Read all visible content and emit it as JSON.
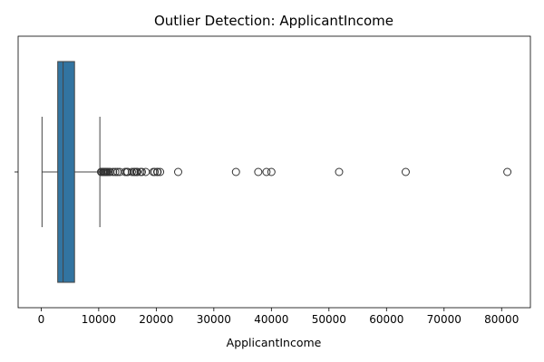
{
  "chart_data": {
    "type": "boxplot",
    "title": "Outlier Detection: ApplicantIncome",
    "xlabel": "ApplicantIncome",
    "ylabel": "",
    "xlim": [
      -4000,
      85000
    ],
    "x_ticks": [
      0,
      10000,
      20000,
      30000,
      40000,
      50000,
      60000,
      70000,
      80000
    ],
    "x_tick_labels": [
      "0",
      "10000",
      "20000",
      "30000",
      "40000",
      "50000",
      "60000",
      "70000",
      "80000"
    ],
    "grid": false,
    "box": {
      "whisker_low": 150,
      "q1": 2880,
      "median": 3810,
      "q3": 5800,
      "whisker_high": 10200,
      "color": "#3274a1"
    },
    "outliers": [
      10408,
      10513,
      10750,
      10833,
      10890,
      11000,
      11146,
      11250,
      11417,
      11500,
      11757,
      12000,
      12500,
      12876,
      13262,
      13650,
      14583,
      14880,
      14999,
      15000,
      15759,
      16120,
      16250,
      16525,
      16667,
      16692,
      17263,
      17500,
      18165,
      19484,
      19730,
      20166,
      20233,
      20667,
      23803,
      33846,
      37719,
      39147,
      39999,
      51763,
      63337,
      81000
    ]
  }
}
